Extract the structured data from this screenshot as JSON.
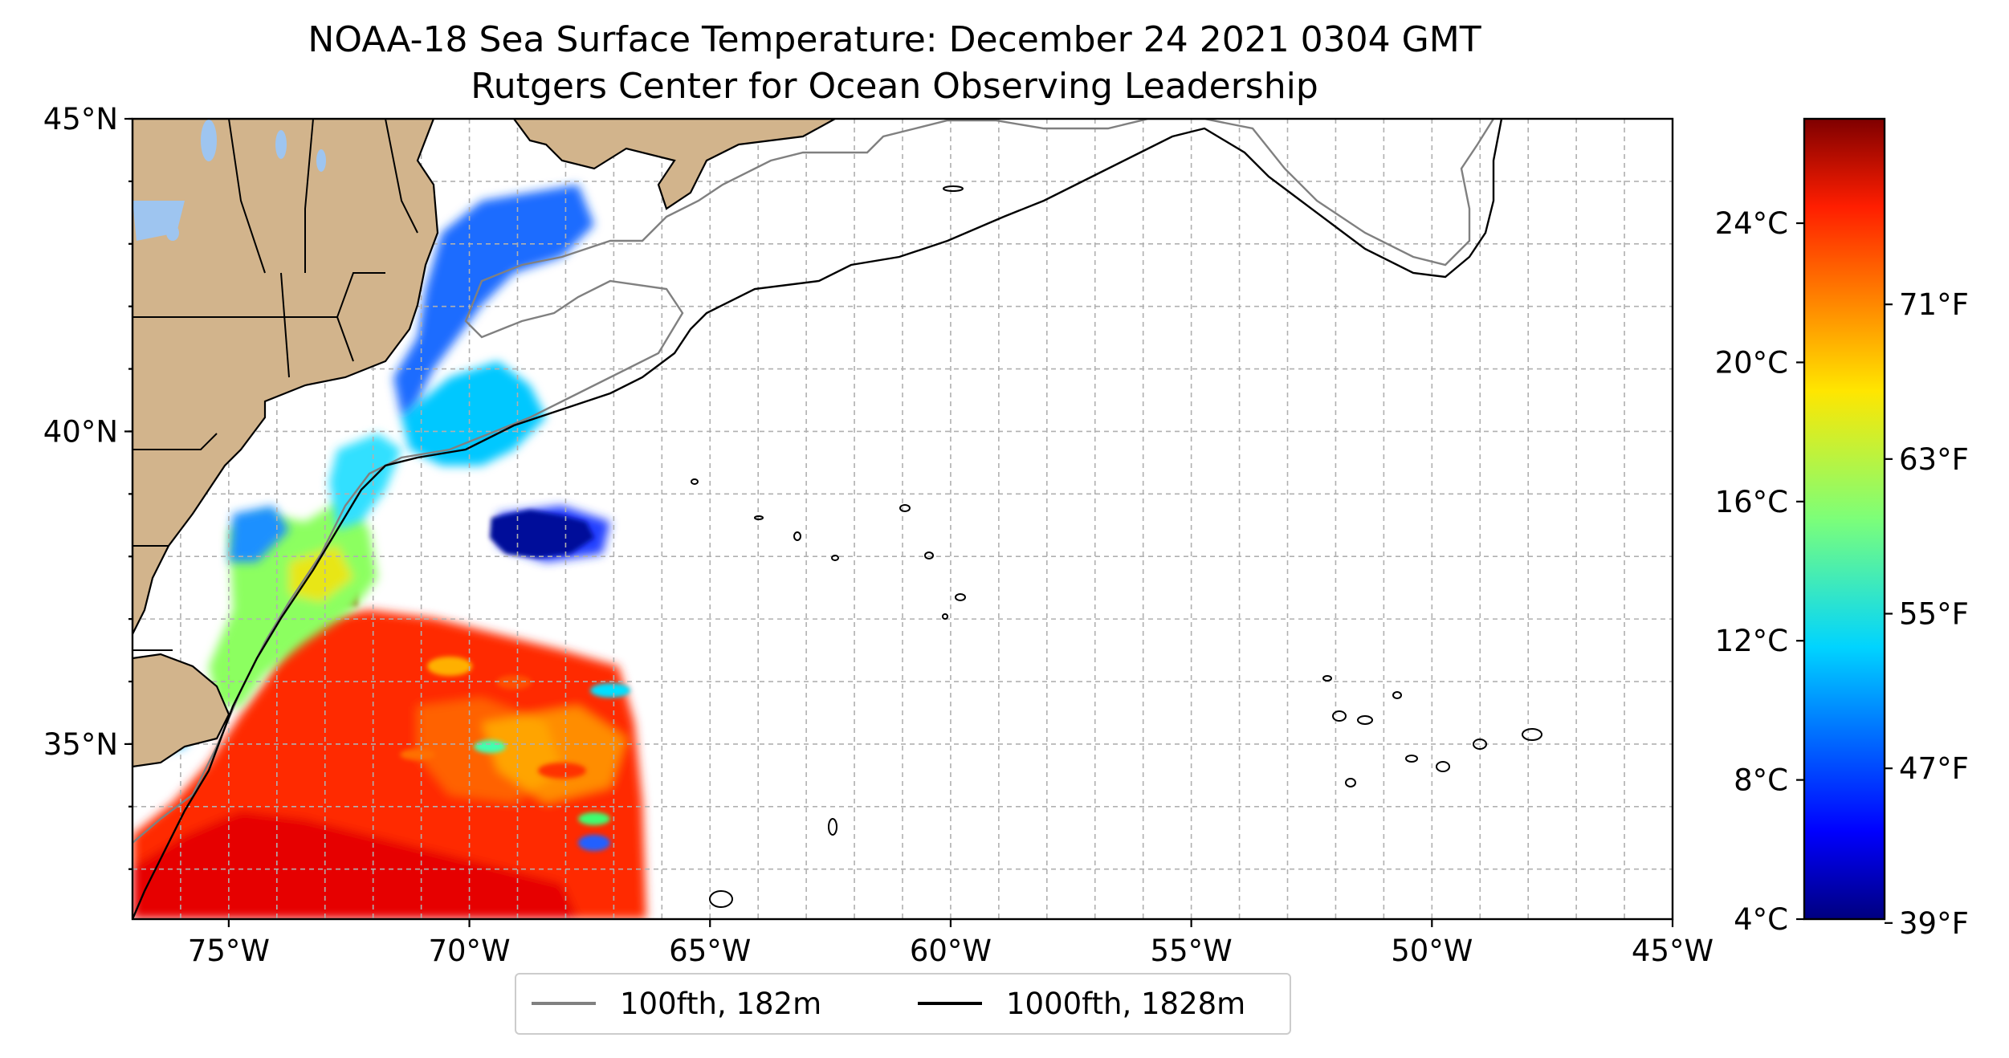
{
  "title": {
    "line1": "NOAA-18 Sea Surface Temperature: December 24 2021 0304 GMT",
    "line2": "Rutgers Center for Ocean Observing Leadership"
  },
  "map": {
    "lon_range": [
      -77,
      -45
    ],
    "lat_range": [
      32.2,
      45
    ],
    "lon_ticks": [
      {
        "value": -75,
        "label": "75°W"
      },
      {
        "value": -70,
        "label": "70°W"
      },
      {
        "value": -65,
        "label": "65°W"
      },
      {
        "value": -60,
        "label": "60°W"
      },
      {
        "value": -55,
        "label": "55°W"
      },
      {
        "value": -50,
        "label": "50°W"
      },
      {
        "value": -45,
        "label": "45°W"
      }
    ],
    "lat_ticks": [
      {
        "value": 45,
        "label": "45°N"
      },
      {
        "value": 40,
        "label": "40°N"
      },
      {
        "value": 35,
        "label": "35°N"
      }
    ],
    "gridlines": "dashed, every 1°",
    "land_color": "#d2b48c",
    "water_body_color": "#9ec5f0"
  },
  "colorbar": {
    "colormap": "jet",
    "celsius_range": [
      4,
      27
    ],
    "celsius_ticks": [
      {
        "value": 24,
        "label": "24°C"
      },
      {
        "value": 20,
        "label": "20°C"
      },
      {
        "value": 16,
        "label": "16°C"
      },
      {
        "value": 12,
        "label": "12°C"
      },
      {
        "value": 8,
        "label": "8°C"
      },
      {
        "value": 4,
        "label": "4°C"
      }
    ],
    "fahrenheit_ticks": [
      {
        "value": 71,
        "label": "71°F"
      },
      {
        "value": 63,
        "label": "63°F"
      },
      {
        "value": 55,
        "label": "55°F"
      },
      {
        "value": 47,
        "label": "47°F"
      },
      {
        "value": 39,
        "label": "39°F"
      }
    ]
  },
  "legend": {
    "items": [
      {
        "label": "100fth, 182m",
        "color": "#808080"
      },
      {
        "label": "1000fth, 1828m",
        "color": "#000000"
      }
    ]
  }
}
